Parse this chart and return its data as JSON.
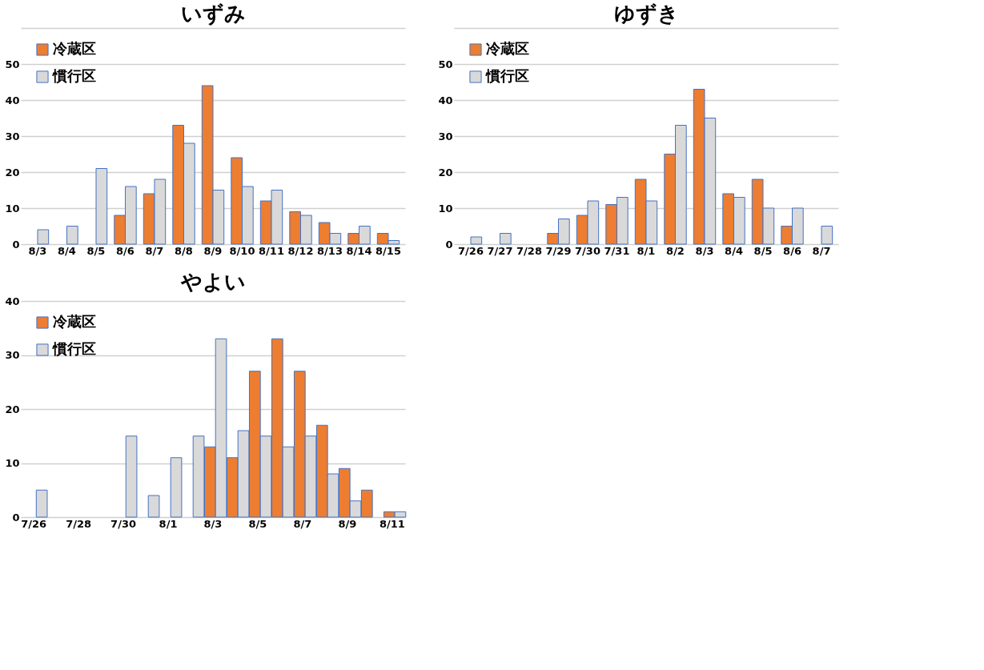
{
  "chart_data": [
    {
      "type": "bar",
      "title": "いずみ",
      "categories": [
        "8/3",
        "8/4",
        "8/5",
        "8/6",
        "8/7",
        "8/8",
        "8/9",
        "8/10",
        "8/11",
        "8/12",
        "8/13",
        "8/14",
        "8/15"
      ],
      "series": [
        {
          "name": "冷蔵区",
          "color": "#ed7d31",
          "values": [
            null,
            null,
            null,
            8,
            14,
            33,
            44,
            24,
            12,
            9,
            6,
            3,
            3
          ]
        },
        {
          "name": "慣行区",
          "color": "#d9d9d9",
          "values": [
            4,
            5,
            21,
            16,
            18,
            28,
            15,
            16,
            15,
            8,
            3,
            5,
            1
          ]
        }
      ],
      "ylim": [
        0,
        60
      ],
      "yticks": [
        0,
        10,
        20,
        30,
        40,
        50,
        {
          "value": 60,
          "label": null
        }
      ],
      "grid": "y",
      "legend": "top left"
    },
    {
      "type": "bar",
      "title": "ゆずき",
      "categories": [
        "7/26",
        "7/27",
        "7/28",
        "7/29",
        "7/30",
        "7/31",
        "8/1",
        "8/2",
        "8/3",
        "8/4",
        "8/5",
        "8/6",
        "8/7"
      ],
      "series": [
        {
          "name": "冷蔵区",
          "color": "#ed7d31",
          "values": [
            null,
            null,
            null,
            3,
            8,
            11,
            18,
            25,
            43,
            14,
            18,
            5,
            null
          ]
        },
        {
          "name": "慣行区",
          "color": "#d9d9d9",
          "values": [
            2,
            3,
            null,
            7,
            12,
            13,
            12,
            33,
            35,
            13,
            10,
            10,
            5
          ]
        }
      ],
      "ylim": [
        0,
        60
      ],
      "yticks": [
        0,
        10,
        20,
        30,
        40,
        50,
        {
          "value": 60,
          "label": null
        }
      ],
      "grid": "y",
      "legend": "top left"
    },
    {
      "type": "bar",
      "title": "やよい",
      "categories": [
        "7/26",
        null,
        "7/28",
        null,
        "7/30",
        null,
        "8/1",
        null,
        "8/3",
        null,
        "8/5",
        null,
        "8/7",
        null,
        "8/9",
        null,
        "8/11"
      ],
      "series": [
        {
          "name": "冷蔵区",
          "color": "#ed7d31",
          "values": [
            null,
            null,
            null,
            null,
            null,
            null,
            null,
            null,
            13,
            11,
            27,
            33,
            27,
            17,
            9,
            5,
            1
          ]
        },
        {
          "name": "慣行区",
          "color": "#d9d9d9",
          "values": [
            5,
            null,
            null,
            null,
            15,
            4,
            11,
            15,
            33,
            16,
            15,
            13,
            15,
            8,
            3,
            null,
            1
          ]
        }
      ],
      "ylim": [
        0,
        40
      ],
      "yticks": [
        0,
        10,
        20,
        30,
        40
      ],
      "grid": "y",
      "legend": "top left"
    }
  ]
}
